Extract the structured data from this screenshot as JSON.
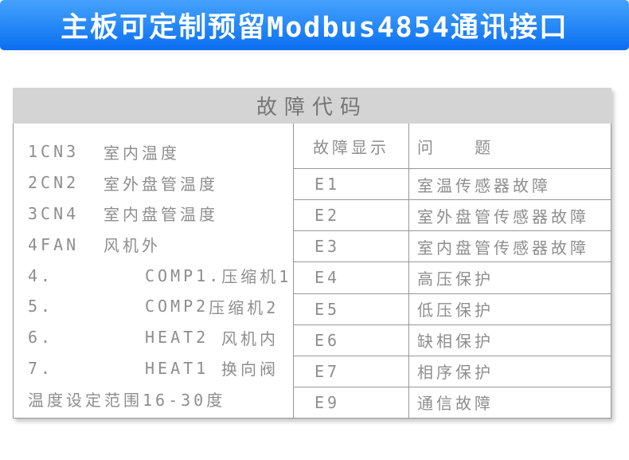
{
  "banner": {
    "title": "主板可定制预留Modbus4854通讯接口"
  },
  "panel": {
    "title": "故障代码",
    "left_rows": [
      {
        "c1": "1CN3",
        "c2": "室内温度",
        "c3": ""
      },
      {
        "c1": "2CN2",
        "c2": "室外盘管温度",
        "c3": ""
      },
      {
        "c1": "3CN4",
        "c2": "室内盘管温度",
        "c3": ""
      },
      {
        "c1": "4FAN",
        "c2": " 风机外",
        "c3": ""
      },
      {
        "c1": "4.",
        "c2": "COMP1.",
        "c3": "压缩机1"
      },
      {
        "c1": "5.",
        "c2": "COMP2",
        "c3": "压缩机2"
      },
      {
        "c1": "6.",
        "c2": "HEAT2",
        "c3": "风机内"
      },
      {
        "c1": "7.",
        "c2": "HEAT1",
        "c3": "换向阀"
      },
      {
        "c1": "温度设定范围16-30度",
        "c2": "",
        "c3": ""
      }
    ],
    "fault_table": {
      "headers": [
        "故障显示",
        "问   题"
      ],
      "rows": [
        [
          "E1",
          "室温传感器故障"
        ],
        [
          "E2",
          "室外盘管传感器故障"
        ],
        [
          "E3",
          "室内盘管传感器故障"
        ],
        [
          "E4",
          "高压保护"
        ],
        [
          "E5",
          "低压保护"
        ],
        [
          "E6",
          "缺相保护"
        ],
        [
          "E7",
          "相序保护"
        ],
        [
          "E9",
          "通信故障"
        ]
      ]
    }
  },
  "colors": {
    "banner_top": "#45a1fc",
    "banner_mid": "#2b8cf7",
    "banner_bottom": "#0b6df1",
    "bar_bg": "#d4d4d4",
    "bar_text": "#767676",
    "text": "#8e8e8e",
    "border": "#979797"
  }
}
